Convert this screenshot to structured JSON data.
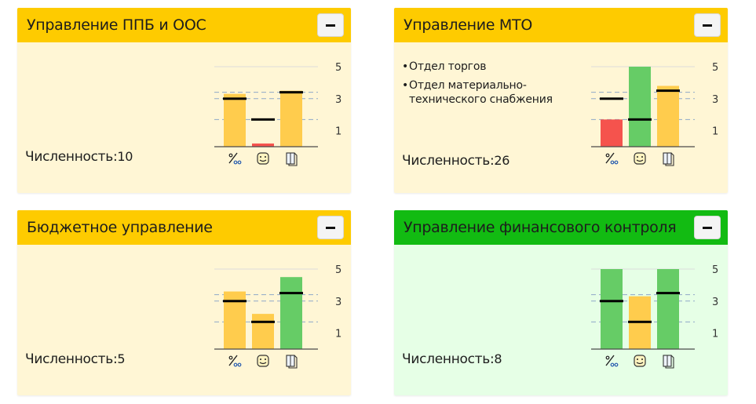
{
  "colors": {
    "header_yellow": "#fecb00",
    "header_green": "#12bb12",
    "card_yellow": "#fff6d5",
    "card_green": "#e6ffe6",
    "bar_yellow": "#ffcc4d",
    "bar_red": "#f5534d",
    "bar_green": "#66cc66",
    "axis": "#4a4a4a",
    "grid": "#8fa8c8"
  },
  "cards": [
    {
      "title": "Управление ППБ и ООС",
      "collapse_label": "−",
      "bullets": [],
      "count_label": "Численность:",
      "count_value": "10",
      "header_color": "yellow",
      "body_color": "yellow",
      "chart_data": {
        "type": "bar",
        "categories": [
          "percent-mille-icon",
          "smiley-icon",
          "book-icon"
        ],
        "values": [
          3.3,
          0.2,
          3.5
        ],
        "targets": [
          3.0,
          1.7,
          3.4
        ],
        "bar_colors": [
          "yellow",
          "red",
          "yellow"
        ],
        "yticks": [
          1,
          3,
          5
        ],
        "ylim": [
          0,
          5
        ],
        "grid_lines": [
          1.7,
          3.0,
          3.4
        ],
        "legend": "none"
      }
    },
    {
      "title": "Управление МТО",
      "collapse_label": "−",
      "bullets": [
        "Отдел торгов",
        "Отдел материально-\nтехнического снабжения"
      ],
      "count_label": "Численность:",
      "count_value": "26",
      "header_color": "yellow",
      "body_color": "yellow",
      "chart_data": {
        "type": "bar",
        "categories": [
          "percent-mille-icon",
          "smiley-icon",
          "book-icon"
        ],
        "values": [
          1.7,
          5.0,
          3.8
        ],
        "targets": [
          3.0,
          1.7,
          3.5
        ],
        "bar_colors": [
          "red",
          "green",
          "yellow"
        ],
        "yticks": [
          1,
          3,
          5
        ],
        "ylim": [
          0,
          5
        ],
        "grid_lines": [
          1.7,
          3.0,
          3.4
        ],
        "legend": "none"
      }
    },
    {
      "title": "Бюджетное управление",
      "collapse_label": "−",
      "bullets": [],
      "count_label": "Численность:",
      "count_value": "5",
      "header_color": "yellow",
      "body_color": "yellow",
      "chart_data": {
        "type": "bar",
        "categories": [
          "percent-mille-icon",
          "smiley-icon",
          "book-icon"
        ],
        "values": [
          3.6,
          2.2,
          4.5
        ],
        "targets": [
          3.0,
          1.7,
          3.5
        ],
        "bar_colors": [
          "yellow",
          "yellow",
          "green"
        ],
        "yticks": [
          1,
          3,
          5
        ],
        "ylim": [
          0,
          5
        ],
        "grid_lines": [
          1.7,
          3.0,
          3.4
        ],
        "legend": "none"
      }
    },
    {
      "title": "Управление финансового контроля",
      "collapse_label": "−",
      "bullets": [],
      "count_label": "Численность:",
      "count_value": "8",
      "header_color": "green",
      "body_color": "green",
      "chart_data": {
        "type": "bar",
        "categories": [
          "percent-mille-icon",
          "smiley-icon",
          "book-icon"
        ],
        "values": [
          5.0,
          3.3,
          5.0
        ],
        "targets": [
          3.0,
          1.7,
          3.5
        ],
        "bar_colors": [
          "green",
          "yellow",
          "green"
        ],
        "yticks": [
          1,
          3,
          5
        ],
        "ylim": [
          0,
          5
        ],
        "grid_lines": [
          1.7,
          3.0,
          3.4
        ],
        "legend": "none"
      }
    }
  ]
}
